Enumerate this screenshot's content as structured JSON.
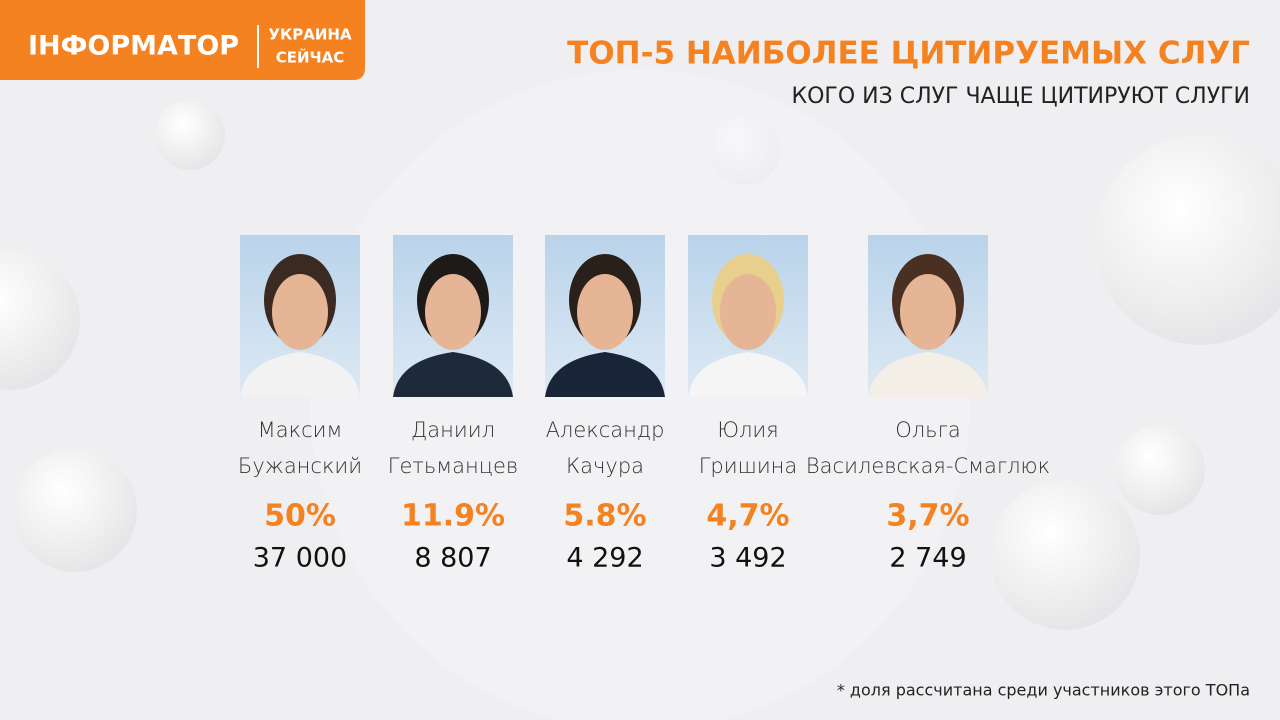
{
  "header": {
    "logo": "ІНФОРМАТОР",
    "logo_tag": [
      "УКРАИНА",
      "СЕЙЧАС"
    ],
    "title": "ТОП-5 НАИБОЛЕЕ ЦИТИРУЕМЫХ СЛУГ",
    "subtitle": "КОГО ИЗ СЛУГ ЧАЩЕ ЦИТИРУЮТ СЛУГИ"
  },
  "people": [
    {
      "name": [
        "Максим",
        "Бужанский"
      ],
      "share": "50%",
      "count": "37 000"
    },
    {
      "name": [
        "Даниил",
        "Гетьманцев"
      ],
      "share": "11.9%",
      "count": "8 807"
    },
    {
      "name": [
        "Александр",
        "Качура"
      ],
      "share": "5.8%",
      "count": "4 292"
    },
    {
      "name": [
        "Юлия",
        "Гришина"
      ],
      "share": "4,7%",
      "count": "3 492"
    },
    {
      "name": [
        "Ольга",
        "Василевская-Смаглюк"
      ],
      "share": "3,7%",
      "count": "2 749"
    }
  ],
  "footnote": "* доля рассчитана среди участников этого ТОПа"
}
